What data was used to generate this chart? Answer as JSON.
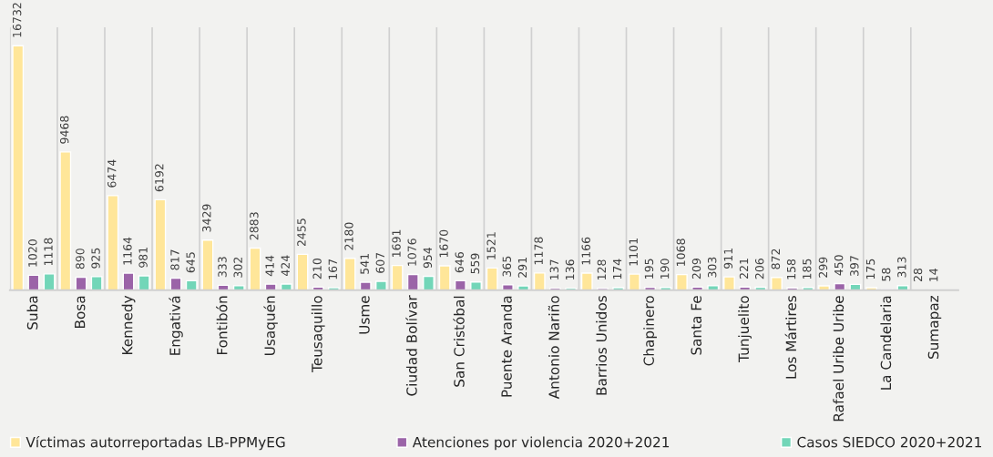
{
  "chart_data": {
    "type": "bar",
    "categories": [
      "Suba",
      "Bosa",
      "Kennedy",
      "Engativá",
      "Fontibón",
      "Usaquén",
      "Teusaquillo",
      "Usme",
      "Ciudad Bolívar",
      "San Cristóbal",
      "Puente Aranda",
      "Antonio Nariño",
      "Barrios Unidos",
      "Chapinero",
      "Santa Fe",
      "Tunjuelito",
      "Los Mártires",
      "Rafael Uribe Uribe",
      "La Candelaria",
      "Sumapaz"
    ],
    "series": [
      {
        "name": "Víctimas autorreportadas LB-PPMyEG",
        "color": "#ffe699",
        "values": [
          16732,
          9468,
          6474,
          6192,
          3429,
          2883,
          2455,
          2180,
          1691,
          1670,
          1521,
          1178,
          1166,
          1101,
          1068,
          911,
          872,
          299,
          175,
          28
        ]
      },
      {
        "name": "Atenciones por violencia 2020+2021",
        "color": "#9b64a8",
        "values": [
          1020,
          890,
          1164,
          817,
          333,
          414,
          210,
          541,
          1076,
          646,
          365,
          137,
          128,
          195,
          209,
          221,
          158,
          450,
          58,
          14
        ]
      },
      {
        "name": "Casos SIEDCO 2020+2021",
        "color": "#72d6b8",
        "values": [
          1118,
          925,
          981,
          645,
          302,
          424,
          167,
          607,
          954,
          559,
          291,
          136,
          174,
          190,
          303,
          206,
          185,
          397,
          313,
          null
        ]
      }
    ],
    "data_labels": true,
    "grid": "x",
    "legend": "bottom"
  }
}
